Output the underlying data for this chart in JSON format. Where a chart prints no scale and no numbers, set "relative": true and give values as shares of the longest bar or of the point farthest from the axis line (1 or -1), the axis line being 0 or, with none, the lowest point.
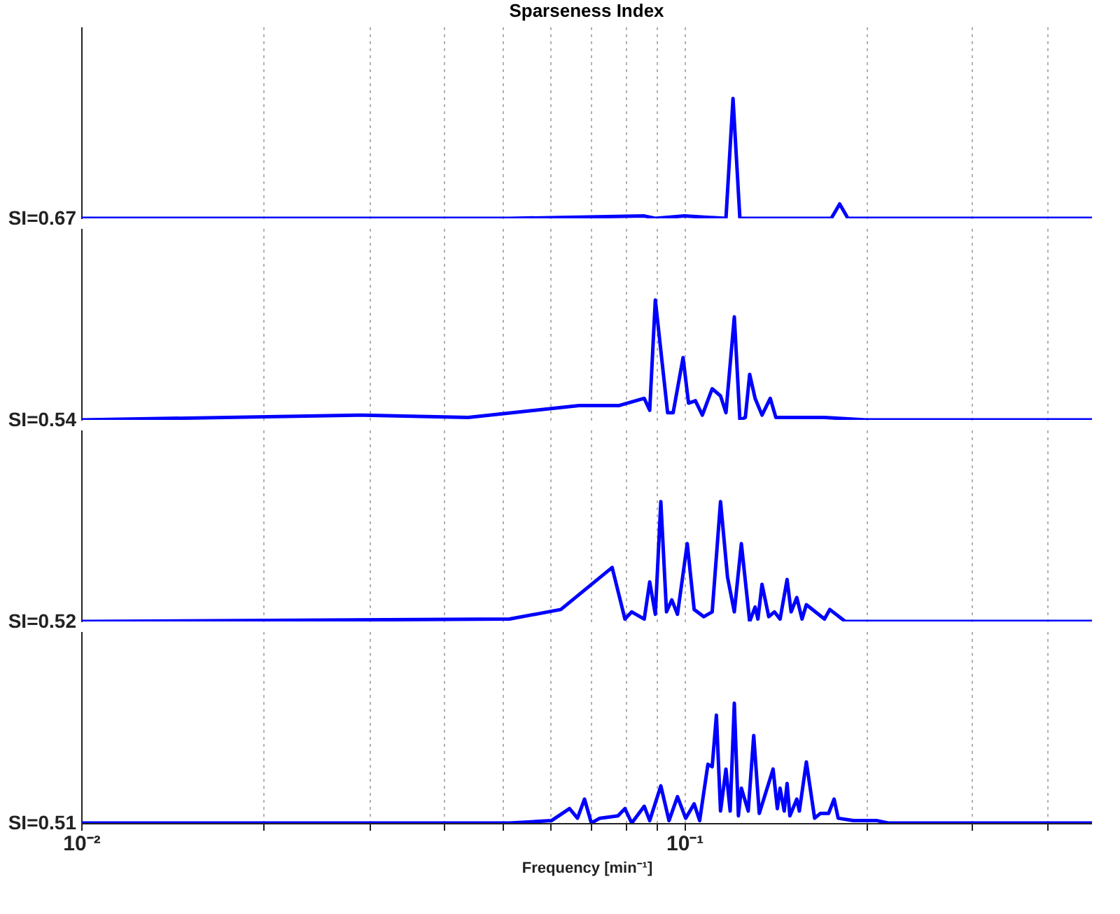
{
  "chart_data": [
    {
      "type": "line",
      "relative": true,
      "title": "Sparseness Index",
      "ylabel": "SI=0.67",
      "log": "x",
      "grid": "x",
      "tick_labels": false,
      "color": "#0000ff",
      "xlim": [
        0.01,
        0.474
      ],
      "xticks": [
        {
          "value": 0.01,
          "label": null
        },
        {
          "value": 0.02,
          "label": null
        },
        {
          "value": 0.03,
          "label": null
        },
        {
          "value": 0.04,
          "label": null
        },
        {
          "value": 0.05,
          "label": null
        },
        {
          "value": 0.06,
          "label": null
        },
        {
          "value": 0.07,
          "label": null
        },
        {
          "value": 0.08,
          "label": null
        },
        {
          "value": 0.09,
          "label": null
        },
        {
          "value": 0.1,
          "label": null
        },
        {
          "value": 0.2,
          "label": null
        },
        {
          "value": 0.3,
          "label": null
        },
        {
          "value": 0.4,
          "label": null
        }
      ],
      "x": [
        0.01,
        0.0513,
        0.0858,
        0.0895,
        0.1,
        0.1172,
        0.1204,
        0.1236,
        0.1752,
        0.1809,
        0.1867,
        0.474
      ],
      "values": [
        0,
        0,
        0.02,
        0,
        0.02,
        0,
        1,
        0,
        0,
        0.12,
        0,
        0
      ]
    },
    {
      "type": "line",
      "relative": true,
      "ylabel": "SI=0.54",
      "log": "x",
      "grid": "x",
      "tick_labels": false,
      "color": "#0000ff",
      "xlim": [
        0.01,
        0.474
      ],
      "xticks": [
        {
          "value": 0.01,
          "label": null
        },
        {
          "value": 0.02,
          "label": null
        },
        {
          "value": 0.03,
          "label": null
        },
        {
          "value": 0.04,
          "label": null
        },
        {
          "value": 0.05,
          "label": null
        },
        {
          "value": 0.06,
          "label": null
        },
        {
          "value": 0.07,
          "label": null
        },
        {
          "value": 0.08,
          "label": null
        },
        {
          "value": 0.09,
          "label": null
        },
        {
          "value": 0.1,
          "label": null
        },
        {
          "value": 0.2,
          "label": null
        },
        {
          "value": 0.3,
          "label": null
        },
        {
          "value": 0.4,
          "label": null
        }
      ],
      "x": [
        0.01,
        0.0294,
        0.0438,
        0.0669,
        0.078,
        0.0858,
        0.0876,
        0.0895,
        0.0938,
        0.0958,
        0.0995,
        0.1016,
        0.1043,
        0.1071,
        0.1112,
        0.1148,
        0.1172,
        0.121,
        0.1236,
        0.1262,
        0.1283,
        0.131,
        0.1345,
        0.1388,
        0.1418,
        0.1496,
        0.1644,
        0.1707,
        0.2,
        0.474
      ],
      "values": [
        0,
        0.04,
        0.02,
        0.12,
        0.12,
        0.18,
        0.08,
        1,
        0.06,
        0.06,
        0.52,
        0.14,
        0.16,
        0.04,
        0.26,
        0.2,
        0.06,
        0.86,
        0,
        0.02,
        0.38,
        0.18,
        0.04,
        0.18,
        0.02,
        0.02,
        0.02,
        0.02,
        0,
        0
      ]
    },
    {
      "type": "line",
      "relative": true,
      "ylabel": "SI=0.52",
      "log": "x",
      "grid": "x",
      "tick_labels": false,
      "color": "#0000ff",
      "xlim": [
        0.01,
        0.474
      ],
      "xticks": [
        {
          "value": 0.01,
          "label": null
        },
        {
          "value": 0.02,
          "label": null
        },
        {
          "value": 0.03,
          "label": null
        },
        {
          "value": 0.04,
          "label": null
        },
        {
          "value": 0.05,
          "label": null
        },
        {
          "value": 0.06,
          "label": null
        },
        {
          "value": 0.07,
          "label": null
        },
        {
          "value": 0.08,
          "label": null
        },
        {
          "value": 0.09,
          "label": null
        },
        {
          "value": 0.1,
          "label": null
        },
        {
          "value": 0.2,
          "label": null
        },
        {
          "value": 0.3,
          "label": null
        },
        {
          "value": 0.4,
          "label": null
        }
      ],
      "x": [
        0.01,
        0.0513,
        0.0624,
        0.0759,
        0.0797,
        0.0818,
        0.0858,
        0.0876,
        0.0895,
        0.0914,
        0.0934,
        0.0953,
        0.0974,
        0.1011,
        0.1038,
        0.1077,
        0.1112,
        0.1148,
        0.1179,
        0.121,
        0.1243,
        0.1283,
        0.131,
        0.1324,
        0.1345,
        0.138,
        0.141,
        0.1441,
        0.148,
        0.1503,
        0.1536,
        0.1567,
        0.1593,
        0.1707,
        0.1742,
        0.1848,
        0.2,
        0.474
      ],
      "values": [
        0,
        0.02,
        0.1,
        0.45,
        0.02,
        0.08,
        0.02,
        0.33,
        0.06,
        1,
        0.08,
        0.18,
        0.06,
        0.65,
        0.1,
        0.04,
        0.08,
        1,
        0.37,
        0.08,
        0.65,
        0,
        0.12,
        0.02,
        0.31,
        0.04,
        0.08,
        0.02,
        0.35,
        0.08,
        0.2,
        0.02,
        0.14,
        0.02,
        0.1,
        0,
        0,
        0
      ]
    },
    {
      "type": "line",
      "relative": true,
      "ylabel": "SI=0.51",
      "xlabel": "Frequency [min⁻¹]",
      "log": "x",
      "grid": "x",
      "tick_labels": "x",
      "color": "#0000ff",
      "xlim": [
        0.01,
        0.474
      ],
      "xticks": [
        {
          "value": 0.01,
          "label": "10⁻²"
        },
        {
          "value": 0.02,
          "label": null
        },
        {
          "value": 0.03,
          "label": null
        },
        {
          "value": 0.04,
          "label": null
        },
        {
          "value": 0.05,
          "label": null
        },
        {
          "value": 0.06,
          "label": null
        },
        {
          "value": 0.07,
          "label": null
        },
        {
          "value": 0.08,
          "label": null
        },
        {
          "value": 0.09,
          "label": null
        },
        {
          "value": 0.1,
          "label": "10⁻¹"
        },
        {
          "value": 0.2,
          "label": null
        },
        {
          "value": 0.3,
          "label": null
        },
        {
          "value": 0.4,
          "label": null
        }
      ],
      "x": [
        0.01,
        0.0513,
        0.0602,
        0.0645,
        0.0665,
        0.0683,
        0.0701,
        0.0724,
        0.0776,
        0.0797,
        0.0818,
        0.0858,
        0.0876,
        0.0914,
        0.0943,
        0.0974,
        0.1005,
        0.1038,
        0.106,
        0.1094,
        0.1112,
        0.113,
        0.1148,
        0.1172,
        0.1191,
        0.121,
        0.1229,
        0.1243,
        0.1276,
        0.1303,
        0.1331,
        0.1403,
        0.1426,
        0.1441,
        0.1464,
        0.148,
        0.1496,
        0.1536,
        0.1551,
        0.1593,
        0.1644,
        0.168,
        0.1734,
        0.1771,
        0.1799,
        0.1905,
        0.2087,
        0.2177,
        0.474
      ],
      "values": [
        0,
        0,
        0.02,
        0.12,
        0.04,
        0.2,
        0,
        0.04,
        0.06,
        0.12,
        0,
        0.14,
        0.02,
        0.31,
        0.02,
        0.22,
        0.04,
        0.16,
        0.02,
        0.49,
        0.47,
        0.9,
        0.1,
        0.45,
        0.1,
        1,
        0.06,
        0.29,
        0.1,
        0.73,
        0.08,
        0.45,
        0.12,
        0.29,
        0.1,
        0.33,
        0.06,
        0.2,
        0.1,
        0.51,
        0.04,
        0.08,
        0.08,
        0.2,
        0.04,
        0.02,
        0.02,
        0,
        0
      ]
    }
  ]
}
